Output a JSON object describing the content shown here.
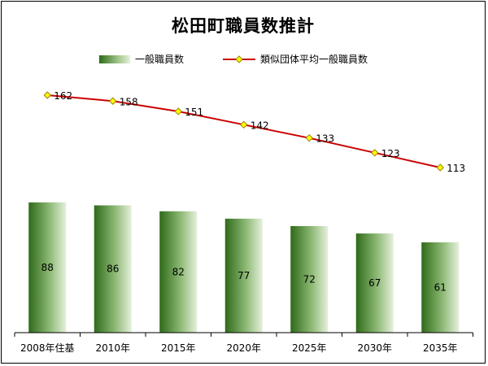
{
  "chart_data": {
    "type": "bar",
    "title": "松田町職員数推計",
    "categories": [
      "2008年住基",
      "2010年",
      "2015年",
      "2020年",
      "2025年",
      "2030年",
      "2035年"
    ],
    "series": [
      {
        "name": "一般職員数",
        "type": "bar",
        "values": [
          88,
          86,
          82,
          77,
          72,
          67,
          61
        ]
      },
      {
        "name": "類似団体平均一般職員数",
        "type": "line",
        "values": [
          162,
          158,
          151,
          142,
          133,
          123,
          113
        ]
      }
    ],
    "legend_position": "top",
    "grid": false,
    "colors": {
      "bar_dark": "#2f6a1a",
      "bar_mid": "#8bb873",
      "bar_light": "#e6f0dc",
      "line": "#cc0000",
      "marker": "#ffff00",
      "marker_edge": "#a08000"
    }
  }
}
